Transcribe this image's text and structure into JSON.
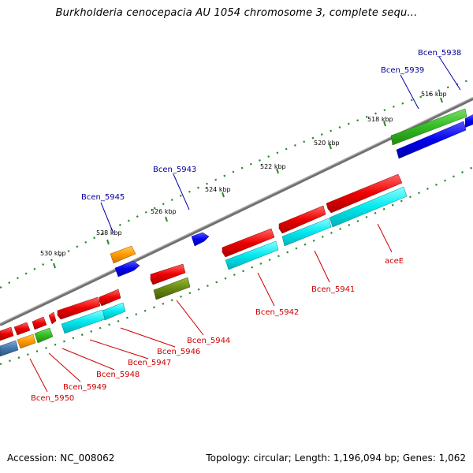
{
  "title": "Burkholderia cenocepacia AU 1054 chromosome 3, complete sequ...",
  "footer": {
    "accession": "Accession: NC_008062",
    "summary": "Topology: circular; Length: 1,196,094 bp; Genes: 1,062"
  },
  "ticks": [
    "516 kbp",
    "518 kbp",
    "520 kbp",
    "522 kbp",
    "524 kbp",
    "526 kbp",
    "528 kbp",
    "530 kbp"
  ],
  "labels_top": [
    "Bcen_5938",
    "Bcen_5939",
    "Bcen_5943",
    "Bcen_5945"
  ],
  "labels_bottom": [
    "aceE",
    "Bcen_5941",
    "Bcen_5942",
    "Bcen_5944",
    "Bcen_5946",
    "Bcen_5947",
    "Bcen_5948",
    "Bcen_5949",
    "Bcen_5950"
  ],
  "colors": {
    "backbone": "#7a7a7a",
    "tick_dots": "#2a8a2a",
    "red": "#ee0000",
    "cyan": "#00e8ee",
    "blue": "#0000ee",
    "green": "#33bb22",
    "orange": "#ff9900",
    "olive": "#668811",
    "steel": "#4477aa"
  }
}
